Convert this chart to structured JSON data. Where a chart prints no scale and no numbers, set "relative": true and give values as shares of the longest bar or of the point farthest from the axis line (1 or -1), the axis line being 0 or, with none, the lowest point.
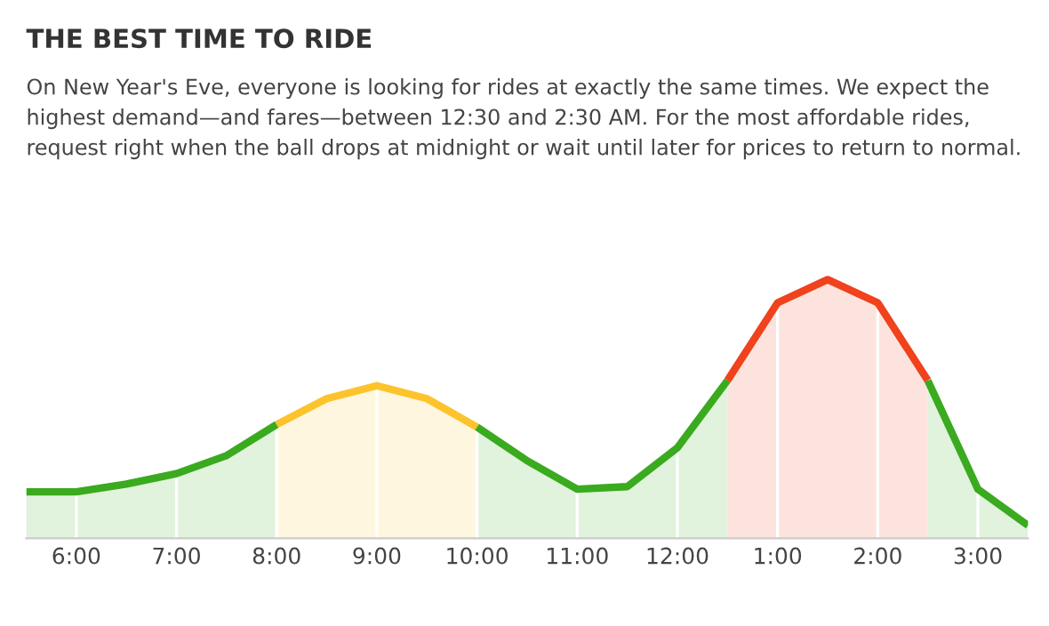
{
  "chart_data": {
    "type": "area",
    "title": "THE BEST TIME TO RIDE",
    "subtitle": "On New Year's Eve, everyone is looking for rides at exactly the same times. We expect the highest demand—and fares—between 12:30 and 2:30 AM. For the most affordable rides, request right when the ball drops at midnight or wait until later for prices to return to normal.",
    "relative": true,
    "categories": [
      null,
      "6:00",
      null,
      "7:00",
      null,
      "8:00",
      null,
      "9:00",
      null,
      "10:00",
      null,
      "11:00",
      null,
      "12:00",
      null,
      "1:00",
      null,
      "2:00",
      null,
      "3:00",
      null
    ],
    "series": [
      {
        "color": "#3aaa1e",
        "values": [
          0.18,
          0.18,
          0.21,
          0.25,
          0.32,
          0.44,
          null,
          null,
          null,
          null,
          null,
          null,
          null,
          null,
          null,
          null,
          null,
          null,
          null,
          null,
          null
        ]
      },
      {
        "color": "#fcc32c",
        "values": [
          null,
          null,
          null,
          null,
          null,
          0.44,
          0.54,
          0.59,
          0.54,
          0.43,
          null,
          null,
          null,
          null,
          null,
          null,
          null,
          null,
          null,
          null,
          null
        ]
      },
      {
        "color": "#3aaa1e",
        "values": [
          null,
          null,
          null,
          null,
          null,
          null,
          null,
          null,
          null,
          0.43,
          0.3,
          0.19,
          0.2,
          0.35,
          0.61,
          null,
          null,
          null,
          null,
          null,
          null
        ]
      },
      {
        "color": "#f0421c",
        "values": [
          null,
          null,
          null,
          null,
          null,
          null,
          null,
          null,
          null,
          null,
          null,
          null,
          null,
          null,
          0.61,
          0.91,
          1.0,
          0.91,
          0.61,
          null,
          null
        ]
      },
      {
        "color": "#3aaa1e",
        "values": [
          null,
          null,
          null,
          null,
          null,
          null,
          null,
          null,
          null,
          null,
          null,
          null,
          null,
          null,
          null,
          null,
          null,
          null,
          0.61,
          0.19,
          0.05
        ]
      }
    ],
    "grid": "x",
    "tick_labels": "x"
  }
}
